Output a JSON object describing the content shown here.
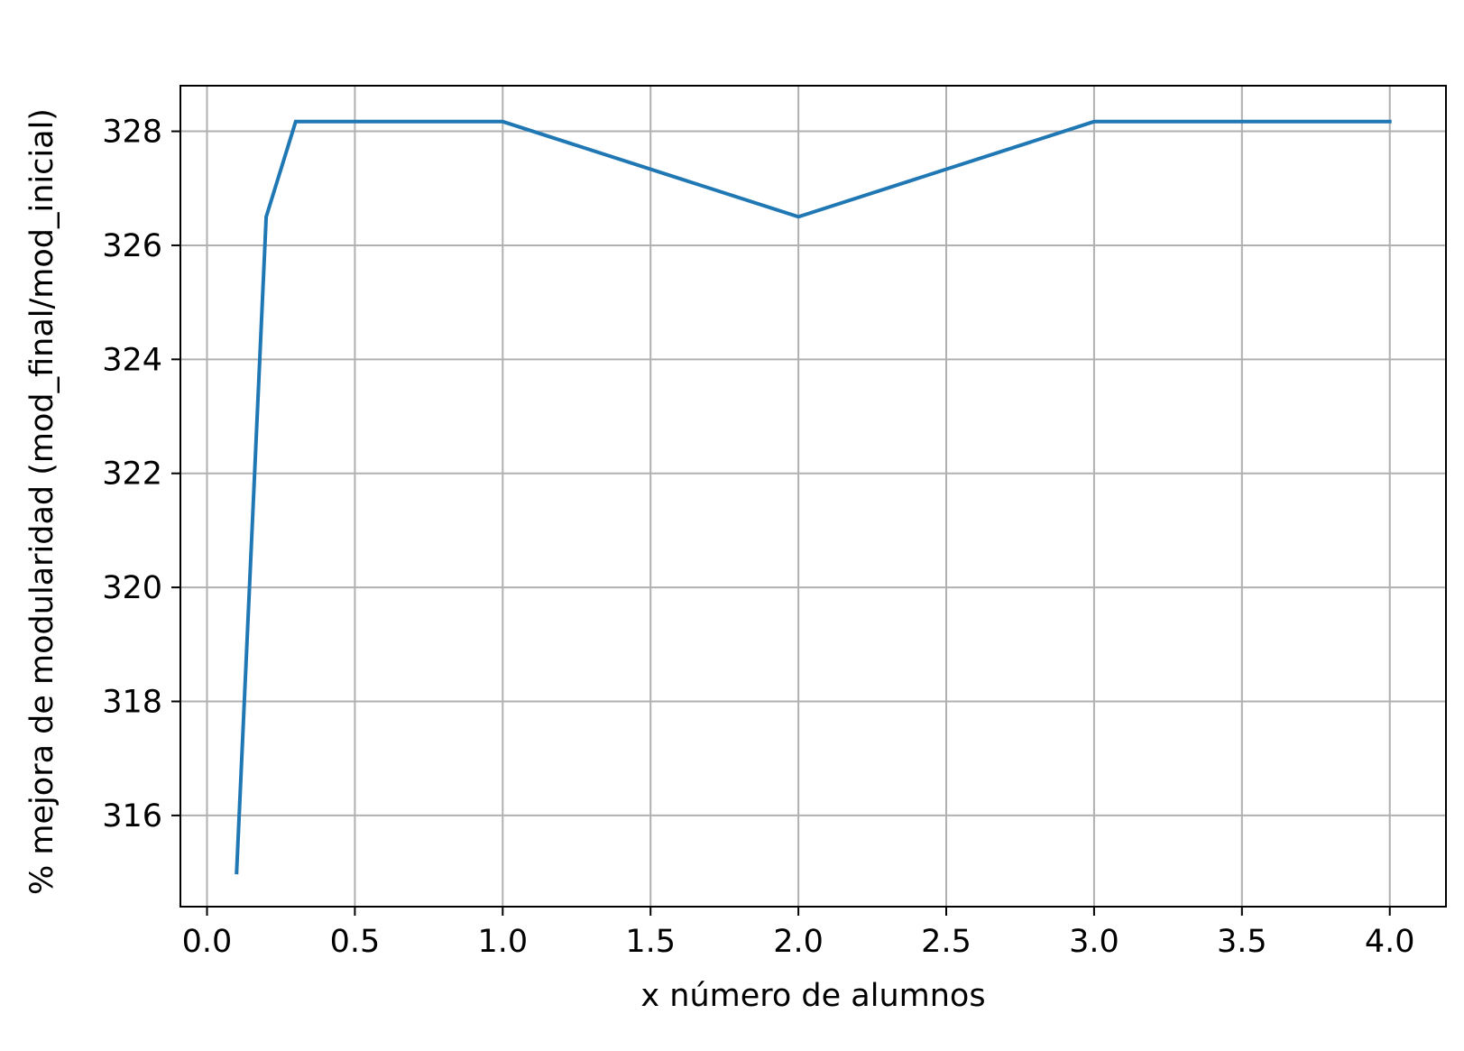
{
  "chart_data": {
    "type": "line",
    "title": "",
    "xlabel": "x número de alumnos",
    "ylabel": "% mejora de modularidad (mod_final/mod_inicial)",
    "xlim": [
      -0.09,
      4.19
    ],
    "ylim": [
      314.4,
      328.8
    ],
    "xticks": [
      0.0,
      0.5,
      1.0,
      1.5,
      2.0,
      2.5,
      3.0,
      3.5,
      4.0
    ],
    "xtick_labels": [
      "0.0",
      "0.5",
      "1.0",
      "1.5",
      "2.0",
      "2.5",
      "3.0",
      "3.5",
      "4.0"
    ],
    "yticks": [
      316,
      318,
      320,
      322,
      324,
      326,
      328
    ],
    "ytick_labels": [
      "316",
      "318",
      "320",
      "322",
      "324",
      "326",
      "328"
    ],
    "grid": true,
    "series": [
      {
        "color": "#1f77b4",
        "x": [
          0.1,
          0.2,
          0.3,
          1.0,
          2.0,
          3.0,
          4.0
        ],
        "y": [
          315.0,
          326.5,
          328.17,
          328.17,
          326.5,
          328.17,
          328.17
        ]
      }
    ]
  }
}
